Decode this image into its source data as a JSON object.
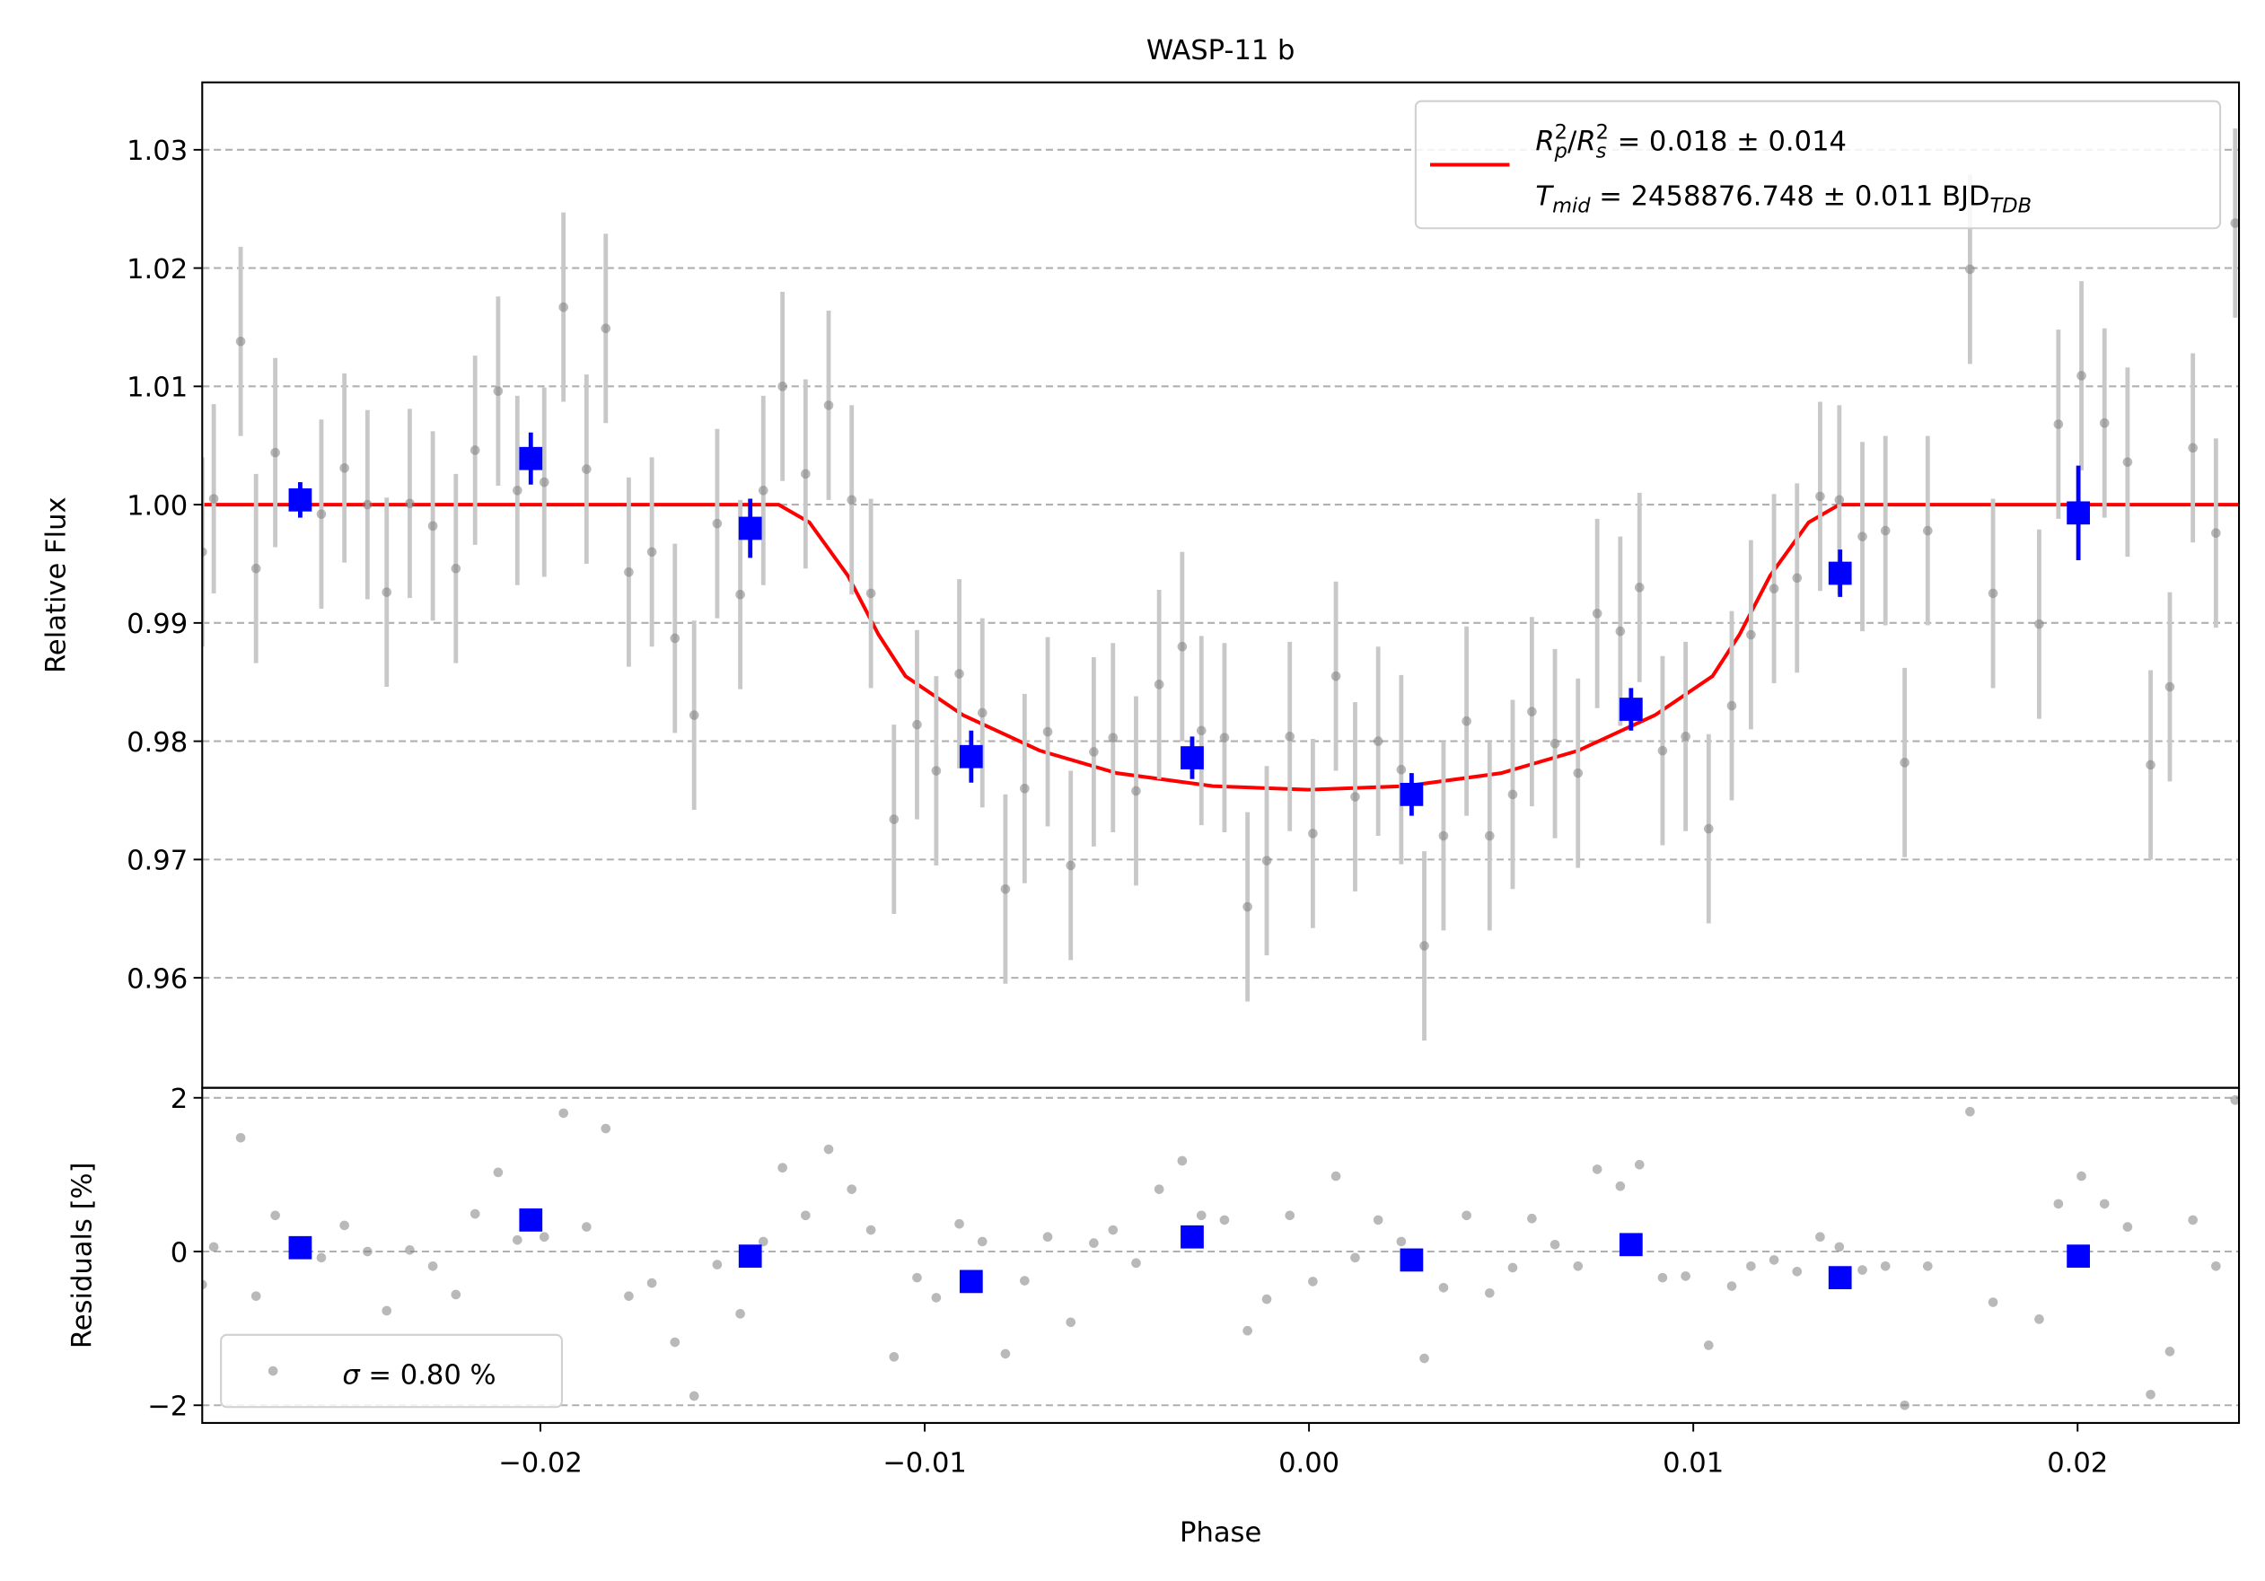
{
  "chart_data": [
    {
      "type": "errorbar",
      "title": "WASP-11 b",
      "ylabel": "Relative Flux",
      "xlim": [
        -0.0288,
        0.0242
      ],
      "ylim": [
        0.9507,
        1.0357
      ],
      "yticks": [
        0.96,
        0.97,
        0.98,
        0.99,
        {
          "value": 1.0,
          "label": "1.00"
        },
        1.01,
        1.02,
        1.03
      ],
      "grid": true,
      "legend_loc": "upper right",
      "series": [
        {
          "kind": "line",
          "color": "#ff0000",
          "label": [
            [
              {
                "text": "R",
                "style": "italic"
              },
              {
                "text": "p",
                "style": "sub"
              },
              {
                "text": "2",
                "style": "sup"
              },
              {
                "text": "/"
              },
              {
                "text": "R",
                "style": "italic"
              },
              {
                "text": "s",
                "style": "sub"
              },
              {
                "text": "2",
                "style": "sup"
              },
              {
                "text": " = 0.018 ± 0.014"
              }
            ],
            [
              {
                "text": "T",
                "style": "italic"
              },
              {
                "text": "mid",
                "style": "sub"
              },
              {
                "text": " = 2458876.748 ± 0.011 BJD"
              },
              {
                "text": "TDB",
                "style": "sub"
              }
            ]
          ],
          "x": [
            -0.0288,
            -0.0138,
            -0.013,
            -0.012,
            -0.0112,
            -0.0105,
            -0.009,
            -0.007,
            -0.005,
            -0.0025,
            0,
            0.0025,
            0.005,
            0.007,
            0.009,
            0.0105,
            0.0112,
            0.012,
            0.013,
            0.0138,
            0.0242
          ],
          "values": [
            1.0,
            1.0,
            0.9985,
            0.994,
            0.989,
            0.9855,
            0.9822,
            0.9792,
            0.9773,
            0.9762,
            0.9759,
            0.9762,
            0.9773,
            0.9792,
            0.9822,
            0.9855,
            0.989,
            0.994,
            0.9985,
            1.0,
            1.0
          ]
        },
        {
          "kind": "errorbar",
          "marker": "circle",
          "color": "#808080",
          "error": 0.008,
          "x": [
            -0.0288,
            -0.0285,
            -0.0278,
            -0.0274,
            -0.0269,
            -0.0257,
            -0.0251,
            -0.0245,
            -0.024,
            -0.0234,
            -0.0228,
            -0.0222,
            -0.0217,
            -0.0211,
            -0.0206,
            -0.0199,
            -0.0194,
            -0.0188,
            -0.0183,
            -0.0177,
            -0.0171,
            -0.0165,
            -0.016,
            -0.0154,
            -0.0148,
            -0.0142,
            -0.0137,
            -0.0131,
            -0.0125,
            -0.0119,
            -0.0114,
            -0.0108,
            -0.0102,
            -0.0097,
            -0.0091,
            -0.0085,
            -0.0079,
            -0.0074,
            -0.0068,
            -0.0062,
            -0.0056,
            -0.0051,
            -0.0045,
            -0.0039,
            -0.0033,
            -0.0028,
            -0.0022,
            -0.0016,
            -0.0011,
            -0.0005,
            0.0001,
            0.0007,
            0.0012,
            0.0018,
            0.0024,
            0.003,
            0.0035,
            0.0041,
            0.0047,
            0.0053,
            0.0058,
            0.0064,
            0.007,
            0.0075,
            0.0081,
            0.0086,
            0.0092,
            0.0098,
            0.0104,
            0.011,
            0.0115,
            0.0121,
            0.0127,
            0.0133,
            0.0138,
            0.0144,
            0.015,
            0.0155,
            0.0161,
            0.0172,
            0.0178,
            0.019,
            0.0195,
            0.0201,
            0.0207,
            0.0213,
            0.0219,
            0.0224,
            0.023,
            0.0236,
            0.0241
          ],
          "values": [
            0.996,
            1.0005,
            1.0138,
            0.9946,
            1.0044,
            0.9992,
            1.0031,
            1.0,
            0.9926,
            1.0001,
            0.9982,
            0.9946,
            1.0046,
            1.0096,
            1.0012,
            1.0019,
            1.0167,
            1.003,
            1.0149,
            0.9943,
            0.996,
            0.9887,
            0.9822,
            0.9984,
            0.9924,
            1.0012,
            1.01,
            1.0026,
            1.0084,
            1.0004,
            0.9925,
            0.9734,
            0.9814,
            0.9775,
            0.9857,
            0.9824,
            0.9675,
            0.976,
            0.9808,
            0.9695,
            0.9791,
            0.9803,
            0.9758,
            0.9848,
            0.988,
            0.9809,
            0.9803,
            0.966,
            0.9699,
            0.9804,
            0.9722,
            0.9855,
            0.9753,
            0.98,
            0.9776,
            0.9627,
            0.972,
            0.9817,
            0.972,
            0.9755,
            0.9825,
            0.9798,
            0.9773,
            0.9908,
            0.9893,
            0.993,
            0.9792,
            0.9804,
            0.9726,
            0.983,
            0.989,
            0.9929,
            0.9938,
            1.0007,
            1.0004,
            0.9973,
            0.9978,
            0.9782,
            0.9978,
            1.0199,
            0.9925,
            0.9899,
            1.0068,
            1.0109,
            1.0069,
            1.0036,
            0.978,
            0.9846,
            1.0048,
            0.9976,
            1.0238
          ]
        },
        {
          "kind": "errorbar",
          "marker": "square",
          "color": "#0000ff",
          "x": [
            -0.02625,
            -0.02025,
            -0.01454,
            -0.00879,
            -0.00304,
            0.00267,
            0.00838,
            0.01382,
            0.02002
          ],
          "values": [
            1.0004,
            1.0039,
            0.998,
            0.9787,
            0.9786,
            0.9755,
            0.9827,
            0.9942,
            0.9993
          ],
          "errors": [
            0.0015,
            0.0022,
            0.0025,
            0.0022,
            0.0018,
            0.0018,
            0.0018,
            0.002,
            0.004
          ]
        }
      ]
    },
    {
      "type": "errorbar",
      "xlabel": "Phase",
      "ylabel": "Residuals [%]",
      "xlim": [
        -0.0288,
        0.0242
      ],
      "ylim": [
        -2.23,
        2.13
      ],
      "xticks": [
        {
          "value": -0.02,
          "label": "−0.02"
        },
        {
          "value": -0.01,
          "label": "−0.01"
        },
        {
          "value": 0,
          "label": "0.00"
        },
        0.01,
        0.02
      ],
      "yticks": [
        {
          "value": -2,
          "label": "−2"
        },
        0,
        2
      ],
      "grid": true,
      "legend_loc": "lower left",
      "series": [
        {
          "kind": "errorbar",
          "marker": "circle",
          "color": "#808080",
          "label": [
            [
              {
                "text": "σ",
                "style": "italic"
              },
              {
                "text": " = 0.80 %"
              }
            ]
          ],
          "x": [
            -0.0288,
            -0.0285,
            -0.0278,
            -0.0274,
            -0.0269,
            -0.0257,
            -0.0251,
            -0.0245,
            -0.024,
            -0.0234,
            -0.0228,
            -0.0222,
            -0.0217,
            -0.0211,
            -0.0206,
            -0.0199,
            -0.0194,
            -0.0188,
            -0.0183,
            -0.0177,
            -0.0171,
            -0.0165,
            -0.016,
            -0.0154,
            -0.0148,
            -0.0142,
            -0.0137,
            -0.0131,
            -0.0125,
            -0.0119,
            -0.0114,
            -0.0108,
            -0.0102,
            -0.0097,
            -0.0091,
            -0.0085,
            -0.0079,
            -0.0074,
            -0.0068,
            -0.0062,
            -0.0056,
            -0.0051,
            -0.0045,
            -0.0039,
            -0.0033,
            -0.0028,
            -0.0022,
            -0.0016,
            -0.0011,
            -0.0005,
            0.0001,
            0.0007,
            0.0012,
            0.0018,
            0.0024,
            0.003,
            0.0035,
            0.0041,
            0.0047,
            0.0053,
            0.0058,
            0.0064,
            0.007,
            0.0075,
            0.0081,
            0.0086,
            0.0092,
            0.0098,
            0.0104,
            0.011,
            0.0115,
            0.0121,
            0.0127,
            0.0133,
            0.0138,
            0.0144,
            0.015,
            0.0155,
            0.0161,
            0.0172,
            0.0178,
            0.019,
            0.0195,
            0.0201,
            0.0207,
            0.0213,
            0.0219,
            0.0224,
            0.023,
            0.0236,
            0.0241
          ],
          "values": [
            -0.43,
            0.06,
            1.48,
            -0.58,
            0.47,
            -0.08,
            0.34,
            0.0,
            -0.77,
            0.02,
            -0.19,
            -0.56,
            0.49,
            1.03,
            0.15,
            0.19,
            1.8,
            0.32,
            1.6,
            -0.58,
            -0.41,
            -1.18,
            -1.88,
            -0.17,
            -0.81,
            0.13,
            1.09,
            0.47,
            1.33,
            0.81,
            0.28,
            -1.37,
            -0.34,
            -0.6,
            0.36,
            0.13,
            -1.33,
            -0.38,
            0.19,
            -0.92,
            0.11,
            0.28,
            -0.15,
            0.81,
            1.18,
            0.47,
            0.41,
            -1.03,
            -0.62,
            0.47,
            -0.39,
            0.98,
            -0.08,
            0.41,
            0.13,
            -1.39,
            -0.47,
            0.47,
            -0.54,
            -0.21,
            0.43,
            0.09,
            -0.19,
            1.07,
            0.85,
            1.13,
            -0.34,
            -0.32,
            -1.22,
            -0.45,
            -0.19,
            -0.11,
            -0.26,
            0.19,
            0.06,
            -0.24,
            -0.19,
            -2.0,
            -0.19,
            1.82,
            -0.66,
            -0.88,
            0.62,
            0.98,
            0.62,
            0.32,
            -1.86,
            -1.3,
            0.41,
            -0.19,
            1.97
          ]
        },
        {
          "kind": "errorbar",
          "marker": "square",
          "color": "#0000ff",
          "x": [
            -0.02625,
            -0.02025,
            -0.01454,
            -0.00879,
            -0.00304,
            0.00267,
            0.00838,
            0.01382,
            0.02002
          ],
          "values": [
            0.05,
            0.41,
            -0.06,
            -0.39,
            0.19,
            -0.11,
            0.09,
            -0.34,
            -0.06
          ]
        }
      ]
    }
  ]
}
